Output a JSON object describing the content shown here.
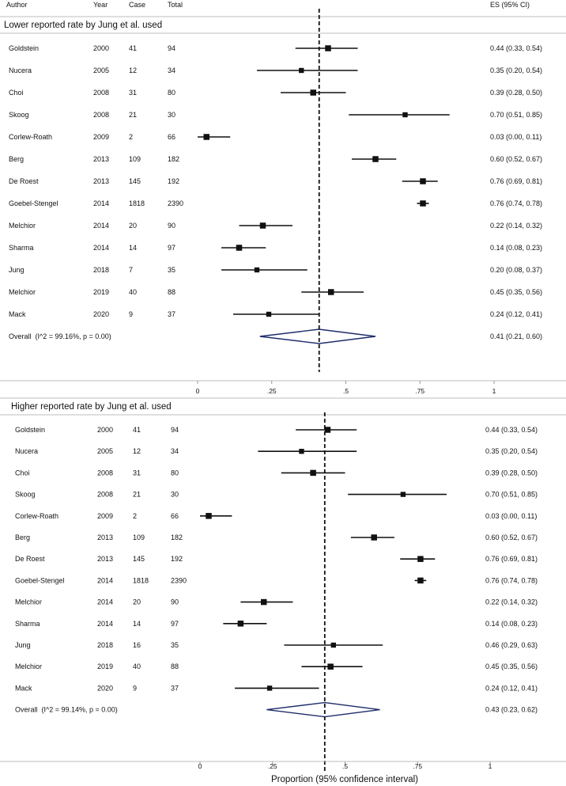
{
  "columns": {
    "author": "Author",
    "year": "Year",
    "case": "Case",
    "total": "Total",
    "es": "ES (95% CI)"
  },
  "x_axis": {
    "ticks": [
      "0",
      ".25",
      ".5",
      ".75",
      "1"
    ],
    "label": "Proportion (95% confidence interval)"
  },
  "chart_data": [
    {
      "type": "forest",
      "title": "Lower reported rate by Jung et al. used",
      "xlim": [
        0,
        1
      ],
      "xticks": [
        0,
        0.25,
        0.5,
        0.75,
        1
      ],
      "reference_line": 0.41,
      "studies": [
        {
          "author": "Goldstein",
          "year": "2000",
          "case": "41",
          "total": "94",
          "es": 0.44,
          "lo": 0.33,
          "hi": 0.54,
          "es_text": "0.44 (0.33, 0.54)",
          "weight": 1.0
        },
        {
          "author": "Nucera",
          "year": "2005",
          "case": "12",
          "total": "34",
          "es": 0.35,
          "lo": 0.2,
          "hi": 0.54,
          "es_text": "0.35 (0.20, 0.54)",
          "weight": 0.85
        },
        {
          "author": "Choi",
          "year": "2008",
          "case": "31",
          "total": "80",
          "es": 0.39,
          "lo": 0.28,
          "hi": 0.5,
          "es_text": "0.39 (0.28, 0.50)",
          "weight": 1.0
        },
        {
          "author": "Skoog",
          "year": "2008",
          "case": "21",
          "total": "30",
          "es": 0.7,
          "lo": 0.51,
          "hi": 0.85,
          "es_text": "0.70 (0.51, 0.85)",
          "weight": 0.85
        },
        {
          "author": "Corlew-Roath",
          "year": "2009",
          "case": "2",
          "total": "66",
          "es": 0.03,
          "lo": 0.0,
          "hi": 0.11,
          "es_text": "0.03 (0.00, 0.11)",
          "weight": 1.0
        },
        {
          "author": "Berg",
          "year": "2013",
          "case": "109",
          "total": "182",
          "es": 0.6,
          "lo": 0.52,
          "hi": 0.67,
          "es_text": "0.60 (0.52, 0.67)",
          "weight": 1.0
        },
        {
          "author": "De Roest",
          "year": "2013",
          "case": "145",
          "total": "192",
          "es": 0.76,
          "lo": 0.69,
          "hi": 0.81,
          "es_text": "0.76 (0.69, 0.81)",
          "weight": 1.0
        },
        {
          "author": "Goebel-Stengel",
          "year": "2014",
          "case": "1818",
          "total": "2390",
          "es": 0.76,
          "lo": 0.74,
          "hi": 0.78,
          "es_text": "0.76 (0.74, 0.78)",
          "weight": 1.0
        },
        {
          "author": "Melchior",
          "year": "2014",
          "case": "20",
          "total": "90",
          "es": 0.22,
          "lo": 0.14,
          "hi": 0.32,
          "es_text": "0.22 (0.14, 0.32)",
          "weight": 1.0
        },
        {
          "author": "Sharma",
          "year": "2014",
          "case": "14",
          "total": "97",
          "es": 0.14,
          "lo": 0.08,
          "hi": 0.23,
          "es_text": "0.14 (0.08, 0.23)",
          "weight": 1.0
        },
        {
          "author": "Jung",
          "year": "2018",
          "case": "7",
          "total": "35",
          "es": 0.2,
          "lo": 0.08,
          "hi": 0.37,
          "es_text": "0.20 (0.08, 0.37)",
          "weight": 0.85
        },
        {
          "author": "Melchior",
          "year": "2019",
          "case": "40",
          "total": "88",
          "es": 0.45,
          "lo": 0.35,
          "hi": 0.56,
          "es_text": "0.45 (0.35, 0.56)",
          "weight": 1.0
        },
        {
          "author": "Mack",
          "year": "2020",
          "case": "9",
          "total": "37",
          "es": 0.24,
          "lo": 0.12,
          "hi": 0.41,
          "es_text": "0.24 (0.12, 0.41)",
          "weight": 0.85
        }
      ],
      "overall": {
        "label": "Overall",
        "heterogeneity": "(I^2 = 99.16%, p = 0.00)",
        "es": 0.41,
        "lo": 0.21,
        "hi": 0.6,
        "es_text": "0.41 (0.21, 0.60)"
      }
    },
    {
      "type": "forest",
      "title": "Higher reported rate by Jung et al. used",
      "xlim": [
        0,
        1
      ],
      "xticks": [
        0,
        0.25,
        0.5,
        0.75,
        1
      ],
      "reference_line": 0.43,
      "studies": [
        {
          "author": "Goldstein",
          "year": "2000",
          "case": "41",
          "total": "94",
          "es": 0.44,
          "lo": 0.33,
          "hi": 0.54,
          "es_text": "0.44 (0.33, 0.54)",
          "weight": 1.0
        },
        {
          "author": "Nucera",
          "year": "2005",
          "case": "12",
          "total": "34",
          "es": 0.35,
          "lo": 0.2,
          "hi": 0.54,
          "es_text": "0.35 (0.20, 0.54)",
          "weight": 0.85
        },
        {
          "author": "Choi",
          "year": "2008",
          "case": "31",
          "total": "80",
          "es": 0.39,
          "lo": 0.28,
          "hi": 0.5,
          "es_text": "0.39 (0.28, 0.50)",
          "weight": 1.0
        },
        {
          "author": "Skoog",
          "year": "2008",
          "case": "21",
          "total": "30",
          "es": 0.7,
          "lo": 0.51,
          "hi": 0.85,
          "es_text": "0.70 (0.51, 0.85)",
          "weight": 0.85
        },
        {
          "author": "Corlew-Roath",
          "year": "2009",
          "case": "2",
          "total": "66",
          "es": 0.03,
          "lo": 0.0,
          "hi": 0.11,
          "es_text": "0.03 (0.00, 0.11)",
          "weight": 1.0
        },
        {
          "author": "Berg",
          "year": "2013",
          "case": "109",
          "total": "182",
          "es": 0.6,
          "lo": 0.52,
          "hi": 0.67,
          "es_text": "0.60 (0.52, 0.67)",
          "weight": 1.0
        },
        {
          "author": "De Roest",
          "year": "2013",
          "case": "145",
          "total": "192",
          "es": 0.76,
          "lo": 0.69,
          "hi": 0.81,
          "es_text": "0.76 (0.69, 0.81)",
          "weight": 1.0
        },
        {
          "author": "Goebel-Stengel",
          "year": "2014",
          "case": "1818",
          "total": "2390",
          "es": 0.76,
          "lo": 0.74,
          "hi": 0.78,
          "es_text": "0.76 (0.74, 0.78)",
          "weight": 1.0
        },
        {
          "author": "Melchior",
          "year": "2014",
          "case": "20",
          "total": "90",
          "es": 0.22,
          "lo": 0.14,
          "hi": 0.32,
          "es_text": "0.22 (0.14, 0.32)",
          "weight": 1.0
        },
        {
          "author": "Sharma",
          "year": "2014",
          "case": "14",
          "total": "97",
          "es": 0.14,
          "lo": 0.08,
          "hi": 0.23,
          "es_text": "0.14 (0.08, 0.23)",
          "weight": 1.0
        },
        {
          "author": "Jung",
          "year": "2018",
          "case": "16",
          "total": "35",
          "es": 0.46,
          "lo": 0.29,
          "hi": 0.63,
          "es_text": "0.46 (0.29, 0.63)",
          "weight": 0.85
        },
        {
          "author": "Melchior",
          "year": "2019",
          "case": "40",
          "total": "88",
          "es": 0.45,
          "lo": 0.35,
          "hi": 0.56,
          "es_text": "0.45 (0.35, 0.56)",
          "weight": 1.0
        },
        {
          "author": "Mack",
          "year": "2020",
          "case": "9",
          "total": "37",
          "es": 0.24,
          "lo": 0.12,
          "hi": 0.41,
          "es_text": "0.24 (0.12, 0.41)",
          "weight": 0.85
        }
      ],
      "overall": {
        "label": "Overall",
        "heterogeneity": "(I^2 = 99.14%, p = 0.00)",
        "es": 0.43,
        "lo": 0.23,
        "hi": 0.62,
        "es_text": "0.43 (0.23, 0.62)"
      }
    }
  ],
  "colors": {
    "diamond": "#1f2d6b",
    "marker": "#111111",
    "separator": "#bdbdbd"
  }
}
